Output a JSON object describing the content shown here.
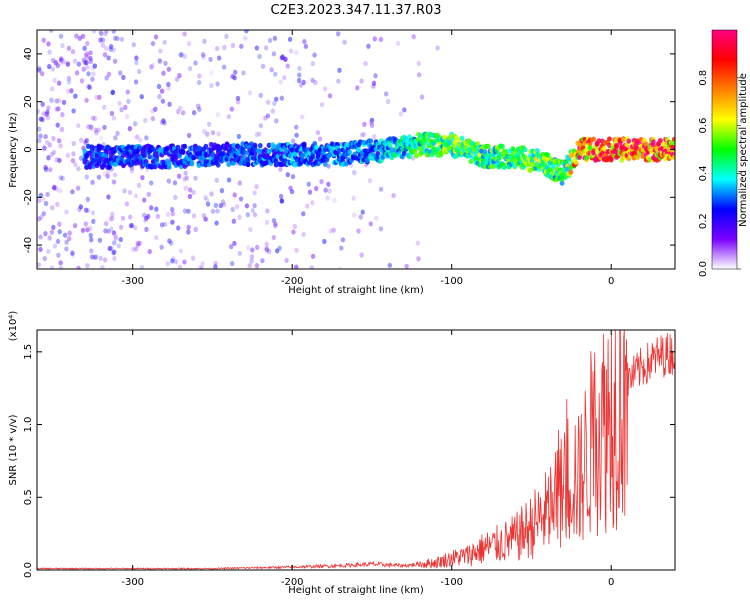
{
  "title": "C2E3.2023.347.11.37.R03",
  "chart_data": [
    {
      "type": "heatmap",
      "xlabel": "Height of straight line (km)",
      "ylabel": "Frequency (Hz)",
      "xlim": [
        -360,
        40
      ],
      "ylim": [
        -50,
        50
      ],
      "xticks": [
        -300,
        -200,
        -100,
        0
      ],
      "yticks": [
        -40,
        -20,
        0,
        20,
        40
      ],
      "colorbar": {
        "label": "Normalized spectral amplitude",
        "range": [
          0.0,
          1.0
        ],
        "ticks": [
          0.0,
          0.2,
          0.4,
          0.6,
          0.8
        ],
        "colormap": [
          "#ffffff",
          "#7b00ff",
          "#0000ff",
          "#00ffff",
          "#00ff00",
          "#ffff00",
          "#ff8000",
          "#ff0000",
          "#ff0080"
        ]
      },
      "ridge": [
        {
          "x": -320,
          "f": -3,
          "amp": 0.3
        },
        {
          "x": -280,
          "f": -3,
          "amp": 0.3
        },
        {
          "x": -240,
          "f": -2,
          "amp": 0.3
        },
        {
          "x": -200,
          "f": -2,
          "amp": 0.35
        },
        {
          "x": -170,
          "f": -2,
          "amp": 0.35
        },
        {
          "x": -140,
          "f": 0,
          "amp": 0.4
        },
        {
          "x": -120,
          "f": 2,
          "amp": 0.5
        },
        {
          "x": -100,
          "f": 2,
          "amp": 0.55
        },
        {
          "x": -80,
          "f": -3,
          "amp": 0.55
        },
        {
          "x": -60,
          "f": -3,
          "amp": 0.5
        },
        {
          "x": -45,
          "f": -5,
          "amp": 0.6
        },
        {
          "x": -30,
          "f": -10,
          "amp": 0.5
        },
        {
          "x": -20,
          "f": 0,
          "amp": 0.9
        },
        {
          "x": 0,
          "f": 0,
          "amp": 0.95
        },
        {
          "x": 20,
          "f": 0,
          "amp": 0.95
        },
        {
          "x": 38,
          "f": 0,
          "amp": 0.9
        }
      ]
    },
    {
      "type": "line",
      "xlabel": "Height of straight line (km)",
      "ylabel": "SNR (10 * v/v)",
      "yscale_label": "(x10⁴)",
      "xlim": [
        -360,
        40
      ],
      "ylim": [
        0,
        1.65
      ],
      "xticks": [
        -300,
        -200,
        -100,
        0
      ],
      "yticks": [
        0.0,
        0.5,
        1.0,
        1.5
      ],
      "series": [
        {
          "color": "#ee3333",
          "x": [
            -360,
            -300,
            -250,
            -200,
            -170,
            -150,
            -130,
            -110,
            -100,
            -90,
            -80,
            -70,
            -60,
            -50,
            -40,
            -30,
            -25,
            -20,
            -15,
            -10,
            -5,
            0,
            10,
            20,
            30,
            40
          ],
          "y": [
            0.01,
            0.01,
            0.01,
            0.02,
            0.03,
            0.04,
            0.03,
            0.05,
            0.08,
            0.1,
            0.15,
            0.18,
            0.22,
            0.3,
            0.4,
            0.55,
            0.7,
            0.6,
            0.8,
            0.95,
            1.0,
            1.1,
            1.3,
            1.4,
            1.47,
            1.5
          ]
        }
      ]
    }
  ]
}
